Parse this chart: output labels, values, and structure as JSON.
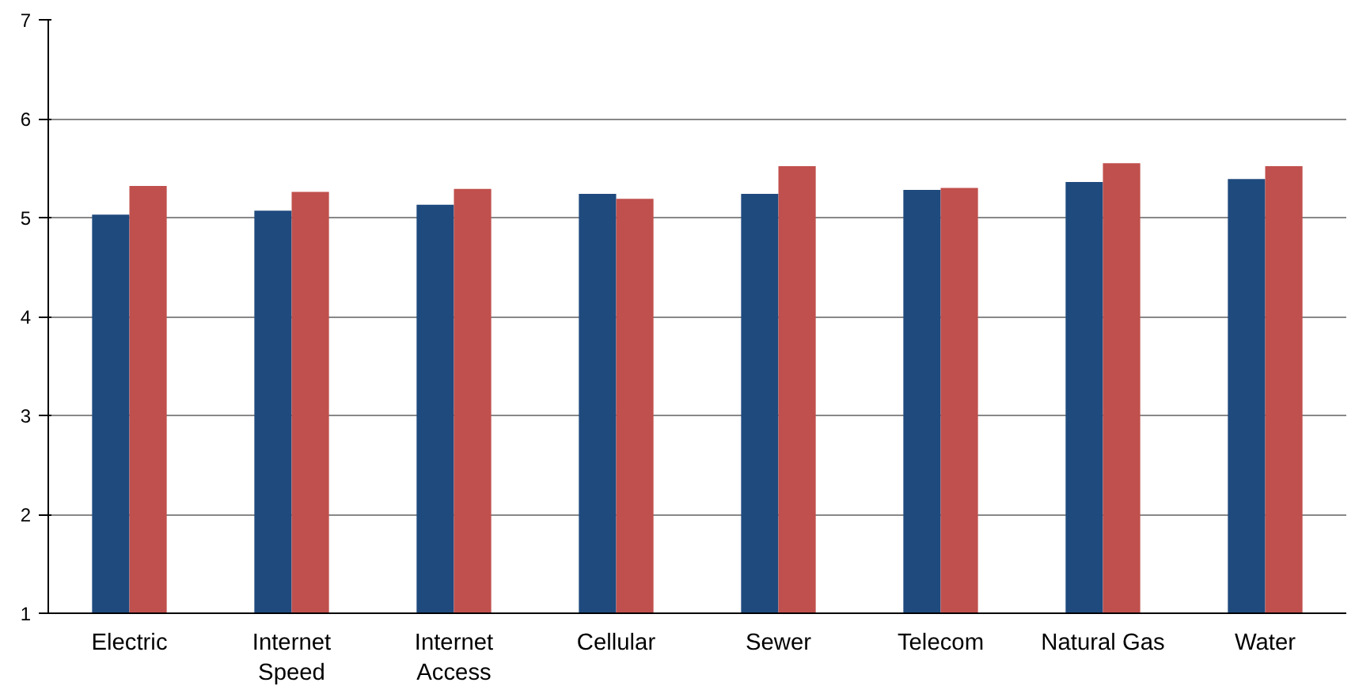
{
  "chart_data": {
    "type": "bar",
    "categories": [
      "Electric",
      "Internet\nSpeed",
      "Internet\nAccess",
      "Cellular",
      "Sewer",
      "Telecom",
      "Natural Gas",
      "Water"
    ],
    "series": [
      {
        "color": "#1f4a7e",
        "values": [
          5.03,
          5.07,
          5.13,
          5.24,
          5.24,
          5.28,
          5.36,
          5.39
        ]
      },
      {
        "color": "#c0504d",
        "values": [
          5.32,
          5.26,
          5.29,
          5.19,
          5.52,
          5.3,
          5.55,
          5.52
        ]
      }
    ],
    "ylim": [
      1,
      7
    ],
    "yticks": [
      1,
      2,
      3,
      4,
      5,
      6,
      7
    ],
    "grid": "y"
  }
}
